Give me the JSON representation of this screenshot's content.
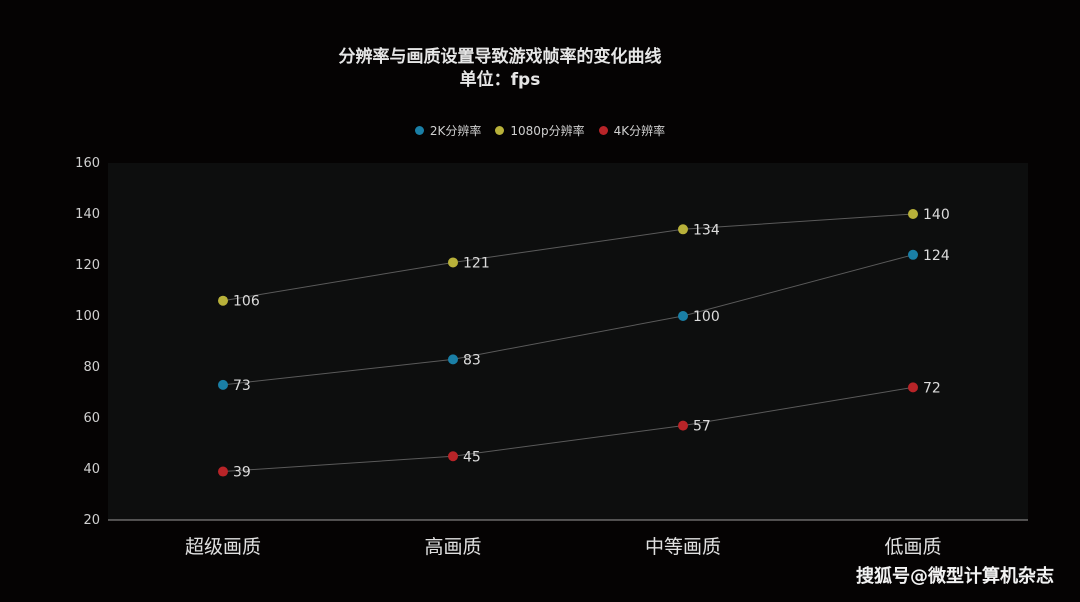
{
  "chart_data": {
    "type": "line",
    "title": "分辨率与画质设置导致游戏帧率的变化曲线",
    "subtitle": "单位：fps",
    "categories": [
      "超级画质",
      "高画质",
      "中等画质",
      "低画质"
    ],
    "ylim": [
      20,
      160
    ],
    "yticks": [
      20,
      40,
      60,
      80,
      100,
      120,
      140,
      160
    ],
    "legend_position": "top",
    "grid": false,
    "series": [
      {
        "name": "2K分辨率",
        "color": "#1a7fa6",
        "values": [
          73,
          83,
          100,
          124
        ]
      },
      {
        "name": "1080p分辨率",
        "color": "#b8b13a",
        "values": [
          106,
          121,
          134,
          140
        ]
      },
      {
        "name": "4K分辨率",
        "color": "#b82428",
        "values": [
          39,
          45,
          57,
          72
        ]
      }
    ]
  },
  "watermark": "搜狐号@微型计算机杂志"
}
